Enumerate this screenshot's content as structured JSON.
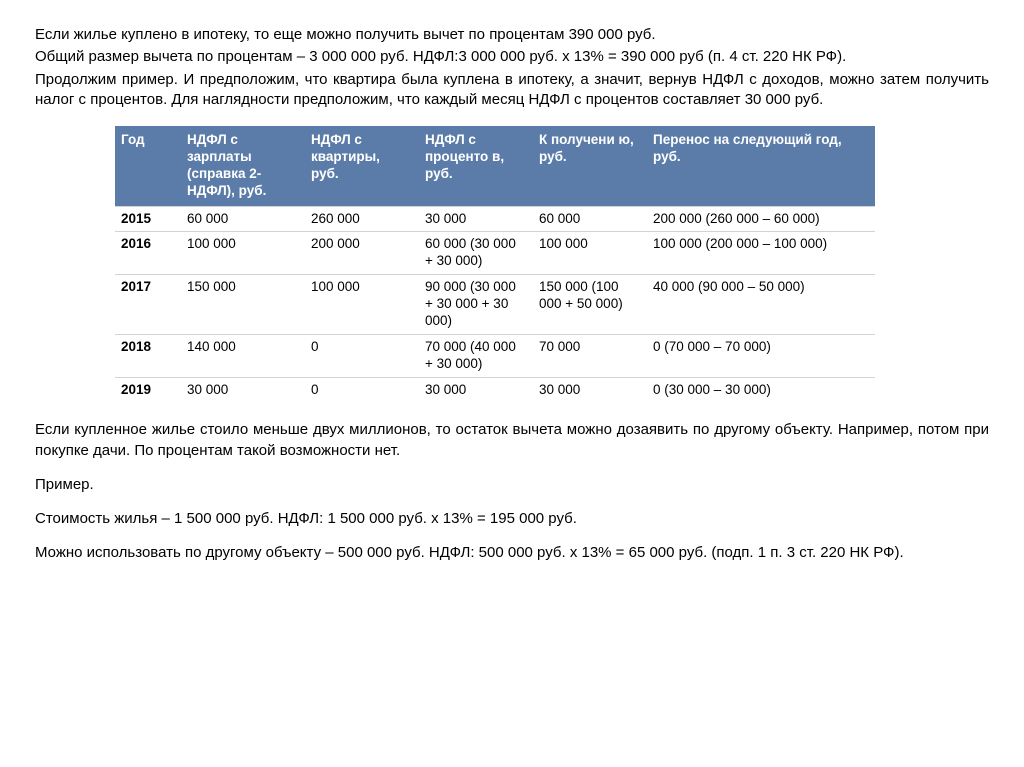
{
  "top": {
    "p1": "Если жилье куплено в ипотеку, то еще можно получить вычет по процентам 390 000 руб.",
    "p2": "Общий размер вычета по процентам – 3 000 000 руб. НДФЛ:3 000 000 руб. x 13% = 390 000 руб (п. 4 ст. 220 НК РФ).",
    "p3": "Продолжим пример. И предположим, что квартира была куплена в ипотеку, а значит, вернув НДФЛ с доходов, можно затем получить налог с процентов. Для наглядности предположим, что каждый месяц НДФЛ с процентов составляет 30 000 руб."
  },
  "table": {
    "header_bg": "#5b7ca8",
    "header_fg": "#ffffff",
    "border_color": "#cfd4da",
    "font_size": 13.5,
    "columns": [
      "Год",
      "НДФЛ с зарплаты (справка 2-НДФЛ), руб.",
      "НДФЛ с квартиры, руб.",
      "НДФЛ с проценто в, руб.",
      "К получени ю, руб.",
      "Перенос на следующий год, руб."
    ],
    "rows": [
      {
        "year": "2015",
        "c1": "60 000",
        "c2": "260 000",
        "c3": "30 000",
        "c4": "60 000",
        "c5": "200 000 (260 000 – 60 000)"
      },
      {
        "year": "2016",
        "c1": "100 000",
        "c2": "200 000",
        "c3": "60 000 (30 000 + 30 000)",
        "c4": "100 000",
        "c5": "100 000 (200 000 – 100 000)"
      },
      {
        "year": "2017",
        "c1": "150 000",
        "c2": "100 000",
        "c3": "90 000 (30 000 + 30 000 + 30 000)",
        "c4": "150 000 (100 000 + 50 000)",
        "c5": "40 000 (90 000 – 50 000)"
      },
      {
        "year": "2018",
        "c1": "140 000",
        "c2": "0",
        "c3": "70 000 (40 000 + 30 000)",
        "c4": "70 000",
        "c5": "0 (70 000 – 70 000)"
      },
      {
        "year": "2019",
        "c1": "30 000",
        "c2": "0",
        "c3": "30 000",
        "c4": "30 000",
        "c5": "0 (30 000 – 30 000)"
      }
    ]
  },
  "bottom": {
    "p1": "Если купленное жилье стоило меньше двух миллионов, то остаток вычета можно дозаявить по другому объекту. Например, потом при покупке дачи. По процентам такой возможности нет.",
    "p2": "Пример.",
    "p3": "Стоимость жилья – 1 500 000 руб. НДФЛ: 1 500 000 руб. x 13% = 195 000 руб.",
    "p4": "Можно использовать по другому объекту – 500 000 руб. НДФЛ: 500 000 руб. x 13% = 65 000 руб. (подп. 1 п. 3 ст. 220 НК РФ)."
  }
}
